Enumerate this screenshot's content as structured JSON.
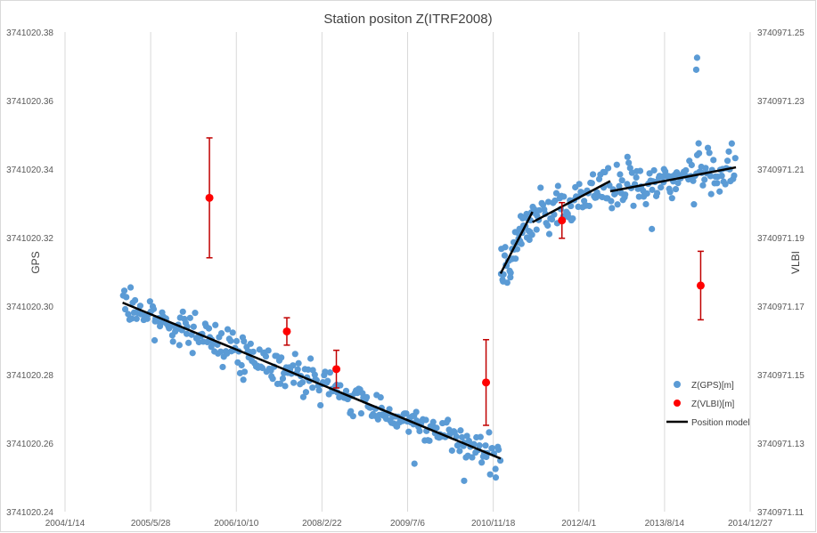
{
  "chart_data": {
    "type": "scatter",
    "title": "Station positon Z(ITRF2008)",
    "ylabel_left": "GPS",
    "ylabel_right": "VLBI",
    "x_ticks": [
      "2004/1/14",
      "2005/5/28",
      "2006/10/10",
      "2008/2/22",
      "2009/7/6",
      "2010/11/18",
      "2012/4/1",
      "2013/8/14",
      "2014/12/27"
    ],
    "y_left_ticks": [
      "3741020.24",
      "3741020.26",
      "3741020.28",
      "3741020.30",
      "3741020.32",
      "3741020.34",
      "3741020.36",
      "3741020.38"
    ],
    "y_right_ticks": [
      "3740971.11",
      "3740971.13",
      "3740971.15",
      "3740971.17",
      "3740971.19",
      "3740971.21",
      "3740971.23",
      "3740971.25"
    ],
    "xlim": [
      "2004/1/14",
      "2014/12/27"
    ],
    "ylim_left": [
      3741020.24,
      3741020.38
    ],
    "ylim_right": [
      3740971.11,
      3740971.25
    ],
    "grid": "vertical",
    "legend_position": "right",
    "legend": [
      "Z(GPS)[m]",
      "Z(VLBI)[m]",
      "Position model"
    ],
    "colors": {
      "gps": "#5b9bd5",
      "vlbi": "#ff0000",
      "error_bar": "#c00000",
      "model": "#000000"
    },
    "gps_model_segments": [
      {
        "x": [
          "2004/12/15",
          "2010/12/31"
        ],
        "y": [
          3741020.301,
          3741020.2555
        ]
      },
      {
        "x": [
          "2010/12/31",
          "2011/7/5"
        ],
        "y": [
          3741020.3095,
          3741020.3275
        ]
      },
      {
        "x": [
          "2011/7/5",
          "2012/10/1"
        ],
        "y": [
          3741020.3245,
          3741020.3365
        ]
      },
      {
        "x": [
          "2012/10/1",
          "2014/10/5"
        ],
        "y": [
          3741020.3335,
          3741020.3405
        ]
      }
    ],
    "gps_outliers": [
      {
        "x": "2014/2/20",
        "y": 3741020.3725
      },
      {
        "x": "2014/2/15",
        "y": 3741020.369
      },
      {
        "x": "2014/3/1",
        "y": 3741020.3475
      },
      {
        "x": "2010/6/1",
        "y": 3741020.249
      },
      {
        "x": "2009/8/15",
        "y": 3741020.254
      },
      {
        "x": "2006/11/20",
        "y": 3741020.2785
      },
      {
        "x": "2005/6/20",
        "y": 3741020.29
      },
      {
        "x": "2013/6/1",
        "y": 3741020.3225
      }
    ],
    "vlbi_points": [
      {
        "x": "2006/5/6",
        "y": 3740971.2016,
        "err": 0.0175
      },
      {
        "x": "2007/8/1",
        "y": 3740971.1626,
        "err": 0.004
      },
      {
        "x": "2008/5/16",
        "y": 3740971.1516,
        "err": 0.0055
      },
      {
        "x": "2010/10/7",
        "y": 3740971.1477,
        "err": 0.0125
      },
      {
        "x": "2011/12/24",
        "y": 3740971.195,
        "err": 0.0052
      },
      {
        "x": "2014/3/13",
        "y": 3740971.176,
        "err": 0.01
      }
    ]
  }
}
